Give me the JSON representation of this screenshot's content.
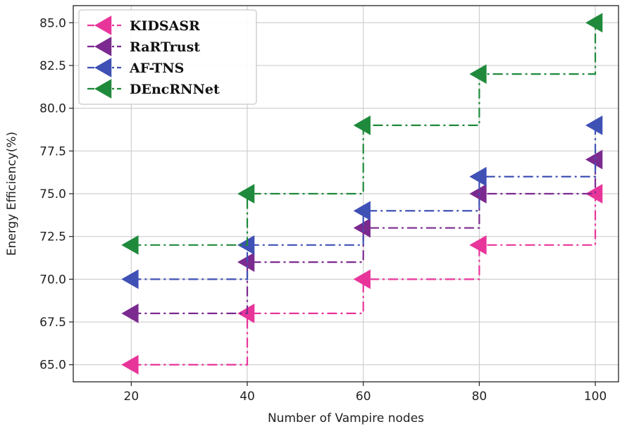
{
  "chart_data": {
    "type": "line",
    "step": "post",
    "x": [
      20,
      40,
      60,
      80,
      100
    ],
    "xlabel": "Number of Vampire nodes",
    "ylabel": "Energy Efficiency(%)",
    "xlim": [
      10,
      104
    ],
    "ylim": [
      64.0,
      86.0
    ],
    "xticks": [
      "20",
      "40",
      "60",
      "80",
      "100"
    ],
    "yticks": [
      "65.0",
      "67.5",
      "70.0",
      "72.5",
      "75.0",
      "77.5",
      "80.0",
      "82.5",
      "85.0"
    ],
    "grid": true,
    "legend_position": "top-left",
    "marker": "left-triangle",
    "line_style": "dash-dot",
    "series": [
      {
        "name": "KIDSASR",
        "color": "#e8359a",
        "values": [
          65,
          68,
          70,
          72,
          75
        ]
      },
      {
        "name": "RaRTrust",
        "color": "#7b2a8f",
        "values": [
          68,
          71,
          73,
          75,
          77
        ]
      },
      {
        "name": "AF-TNS",
        "color": "#3f51b5",
        "values": [
          70,
          72,
          74,
          76,
          79
        ]
      },
      {
        "name": "DEncRNNet",
        "color": "#1f8a3b",
        "values": [
          72,
          75,
          79,
          82,
          85
        ]
      }
    ]
  }
}
